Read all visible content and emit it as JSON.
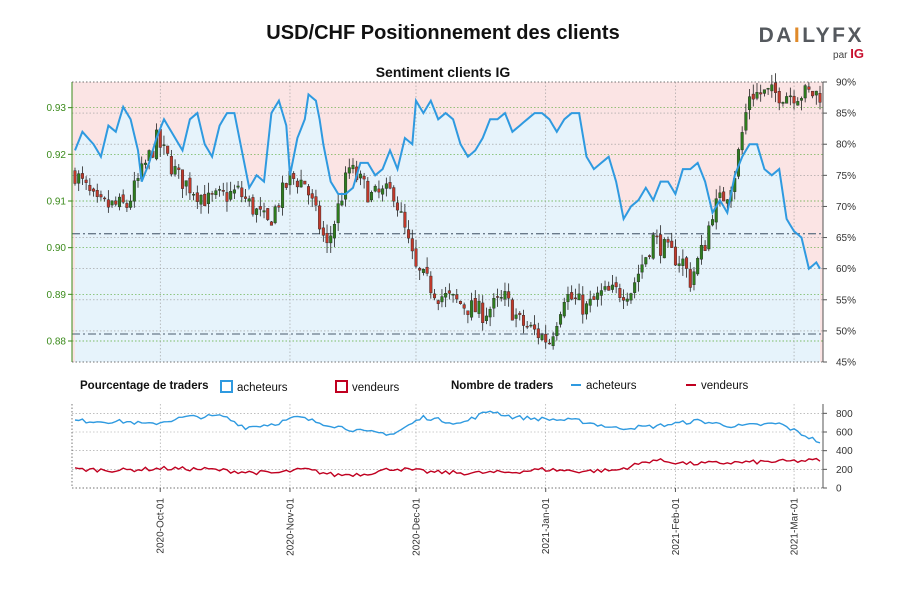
{
  "title": "USD/CHF Positionnement des clients",
  "subtitle": "Sentiment clients IG",
  "logo": {
    "brand": "DAILYFX",
    "by": "par",
    "partner": "IG"
  },
  "legend": {
    "pct_label": "Pourcentage de traders",
    "count_label": "Nombre de traders",
    "buyers": "acheteurs",
    "sellers": "vendeurs"
  },
  "colors": {
    "buyers": "#2f9ae0",
    "sellers": "#c00020",
    "up": "#2e7d1e",
    "down": "#c0392b",
    "buy_zone": "#e6f3fb",
    "sell_zone": "#fbe4e4"
  },
  "chart_data": [
    {
      "type": "candlestick",
      "name": "USD/CHF price",
      "y_axis": "left",
      "ylim": [
        0.8755,
        0.9355
      ],
      "yticks": [
        "0.88",
        "0.89",
        "0.90",
        "0.91",
        "0.92",
        "0.93"
      ],
      "reference_lines": [
        0.903,
        0.8815
      ],
      "close_anchors": [
        [
          0,
          0.916
        ],
        [
          6,
          0.909
        ],
        [
          14,
          0.909
        ],
        [
          22,
          0.923
        ],
        [
          28,
          0.915
        ],
        [
          36,
          0.91
        ],
        [
          44,
          0.912
        ],
        [
          52,
          0.905
        ],
        [
          58,
          0.915
        ],
        [
          62,
          0.914
        ],
        [
          68,
          0.9
        ],
        [
          74,
          0.917
        ],
        [
          80,
          0.911
        ],
        [
          86,
          0.912
        ],
        [
          92,
          0.895
        ],
        [
          98,
          0.89
        ],
        [
          104,
          0.888
        ],
        [
          110,
          0.886
        ],
        [
          116,
          0.889
        ],
        [
          120,
          0.884
        ],
        [
          124,
          0.882
        ],
        [
          128,
          0.88
        ],
        [
          132,
          0.89
        ],
        [
          138,
          0.887
        ],
        [
          142,
          0.89
        ],
        [
          150,
          0.891
        ],
        [
          156,
          0.902
        ],
        [
          160,
          0.899
        ],
        [
          164,
          0.897
        ],
        [
          166,
          0.893
        ],
        [
          170,
          0.901
        ],
        [
          172,
          0.908
        ],
        [
          176,
          0.912
        ],
        [
          178,
          0.916
        ],
        [
          182,
          0.933
        ]
      ]
    },
    {
      "type": "line",
      "name": "Pourcentage acheteurs",
      "y_axis": "right",
      "ylim": [
        45,
        90
      ],
      "yticks": [
        "45%",
        "50%",
        "55%",
        "60%",
        "65%",
        "70%",
        "75%",
        "80%",
        "85%",
        "90%"
      ],
      "points": [
        [
          0,
          79
        ],
        [
          2,
          82
        ],
        [
          5,
          80
        ],
        [
          7,
          78
        ],
        [
          9,
          83
        ],
        [
          11,
          82
        ],
        [
          13,
          86
        ],
        [
          15,
          84
        ],
        [
          17,
          79
        ],
        [
          18,
          74
        ],
        [
          20,
          77
        ],
        [
          22,
          81
        ],
        [
          24,
          84
        ],
        [
          26,
          82
        ],
        [
          29,
          79
        ],
        [
          31,
          84
        ],
        [
          33,
          85
        ],
        [
          35,
          80
        ],
        [
          37,
          78
        ],
        [
          39,
          83
        ],
        [
          41,
          85
        ],
        [
          43,
          85
        ],
        [
          45,
          79
        ],
        [
          47,
          73
        ],
        [
          49,
          75
        ],
        [
          51,
          74
        ],
        [
          53,
          85
        ],
        [
          55,
          87
        ],
        [
          57,
          83
        ],
        [
          58,
          75
        ],
        [
          60,
          81
        ],
        [
          62,
          84
        ],
        [
          63,
          88
        ],
        [
          65,
          87
        ],
        [
          66,
          84
        ],
        [
          67,
          80
        ],
        [
          69,
          74
        ],
        [
          71,
          72
        ],
        [
          73,
          72
        ],
        [
          75,
          73
        ],
        [
          77,
          77
        ],
        [
          79,
          77
        ],
        [
          81,
          75
        ],
        [
          83,
          76
        ],
        [
          85,
          79
        ],
        [
          87,
          76
        ],
        [
          89,
          81
        ],
        [
          91,
          80
        ],
        [
          92,
          87
        ],
        [
          94,
          85
        ],
        [
          96,
          87
        ],
        [
          98,
          84
        ],
        [
          100,
          85
        ],
        [
          102,
          84
        ],
        [
          104,
          80
        ],
        [
          106,
          78
        ],
        [
          108,
          79
        ],
        [
          110,
          81
        ],
        [
          112,
          84
        ],
        [
          114,
          84
        ],
        [
          116,
          85
        ],
        [
          118,
          82
        ],
        [
          120,
          83
        ],
        [
          122,
          84
        ],
        [
          124,
          85
        ],
        [
          126,
          85
        ],
        [
          128,
          84
        ],
        [
          130,
          82
        ],
        [
          132,
          84
        ],
        [
          134,
          85
        ],
        [
          136,
          85
        ],
        [
          138,
          78
        ],
        [
          140,
          76
        ],
        [
          142,
          77
        ],
        [
          144,
          78
        ],
        [
          146,
          74
        ],
        [
          148,
          68
        ],
        [
          150,
          70
        ],
        [
          152,
          71
        ],
        [
          154,
          73
        ],
        [
          156,
          71
        ],
        [
          158,
          74
        ],
        [
          160,
          74
        ],
        [
          162,
          72
        ],
        [
          164,
          76
        ],
        [
          166,
          76
        ],
        [
          168,
          77
        ],
        [
          170,
          74
        ],
        [
          172,
          69
        ],
        [
          174,
          71
        ],
        [
          176,
          69
        ],
        [
          178,
          75
        ],
        [
          180,
          78
        ],
        [
          182,
          80
        ],
        [
          184,
          80
        ],
        [
          186,
          76
        ],
        [
          188,
          75
        ],
        [
          190,
          76
        ],
        [
          192,
          68
        ],
        [
          194,
          66
        ],
        [
          196,
          65
        ],
        [
          198,
          60
        ],
        [
          200,
          61
        ],
        [
          201,
          60
        ]
      ]
    },
    {
      "type": "line",
      "name": "Nombre de traders",
      "y_axis": "right",
      "ylim": [
        0,
        900
      ],
      "yticks": [
        "0",
        "200",
        "400",
        "600",
        "800"
      ],
      "series": [
        {
          "name": "acheteurs",
          "anchors": [
            [
              0,
              720
            ],
            [
              14,
              710
            ],
            [
              20,
              680
            ],
            [
              30,
              760
            ],
            [
              40,
              770
            ],
            [
              46,
              650
            ],
            [
              54,
              690
            ],
            [
              60,
              760
            ],
            [
              66,
              700
            ],
            [
              72,
              650
            ],
            [
              78,
              600
            ],
            [
              86,
              580
            ],
            [
              94,
              760
            ],
            [
              104,
              690
            ],
            [
              112,
              830
            ],
            [
              118,
              760
            ],
            [
              126,
              740
            ],
            [
              136,
              720
            ],
            [
              146,
              640
            ],
            [
              156,
              660
            ],
            [
              168,
              720
            ],
            [
              178,
              660
            ],
            [
              190,
              690
            ],
            [
              196,
              580
            ],
            [
              201,
              490
            ]
          ]
        },
        {
          "name": "vendeurs",
          "anchors": [
            [
              0,
              200
            ],
            [
              12,
              190
            ],
            [
              24,
              210
            ],
            [
              36,
              200
            ],
            [
              46,
              170
            ],
            [
              54,
              160
            ],
            [
              62,
              200
            ],
            [
              70,
              140
            ],
            [
              78,
              150
            ],
            [
              86,
              210
            ],
            [
              96,
              170
            ],
            [
              106,
              160
            ],
            [
              118,
              170
            ],
            [
              126,
              200
            ],
            [
              136,
              180
            ],
            [
              146,
              190
            ],
            [
              156,
              300
            ],
            [
              166,
              260
            ],
            [
              176,
              270
            ],
            [
              186,
              280
            ],
            [
              196,
              290
            ],
            [
              201,
              300
            ]
          ]
        }
      ]
    },
    {
      "type": "time_axis",
      "labels": [
        "2020-Oct-01",
        "2020-Nov-01",
        "2020-Dec-01",
        "2021-Jan-01",
        "2021-Feb-01",
        "2021-Mar-01"
      ],
      "label_index": [
        23,
        58,
        92,
        127,
        162,
        194
      ]
    }
  ]
}
